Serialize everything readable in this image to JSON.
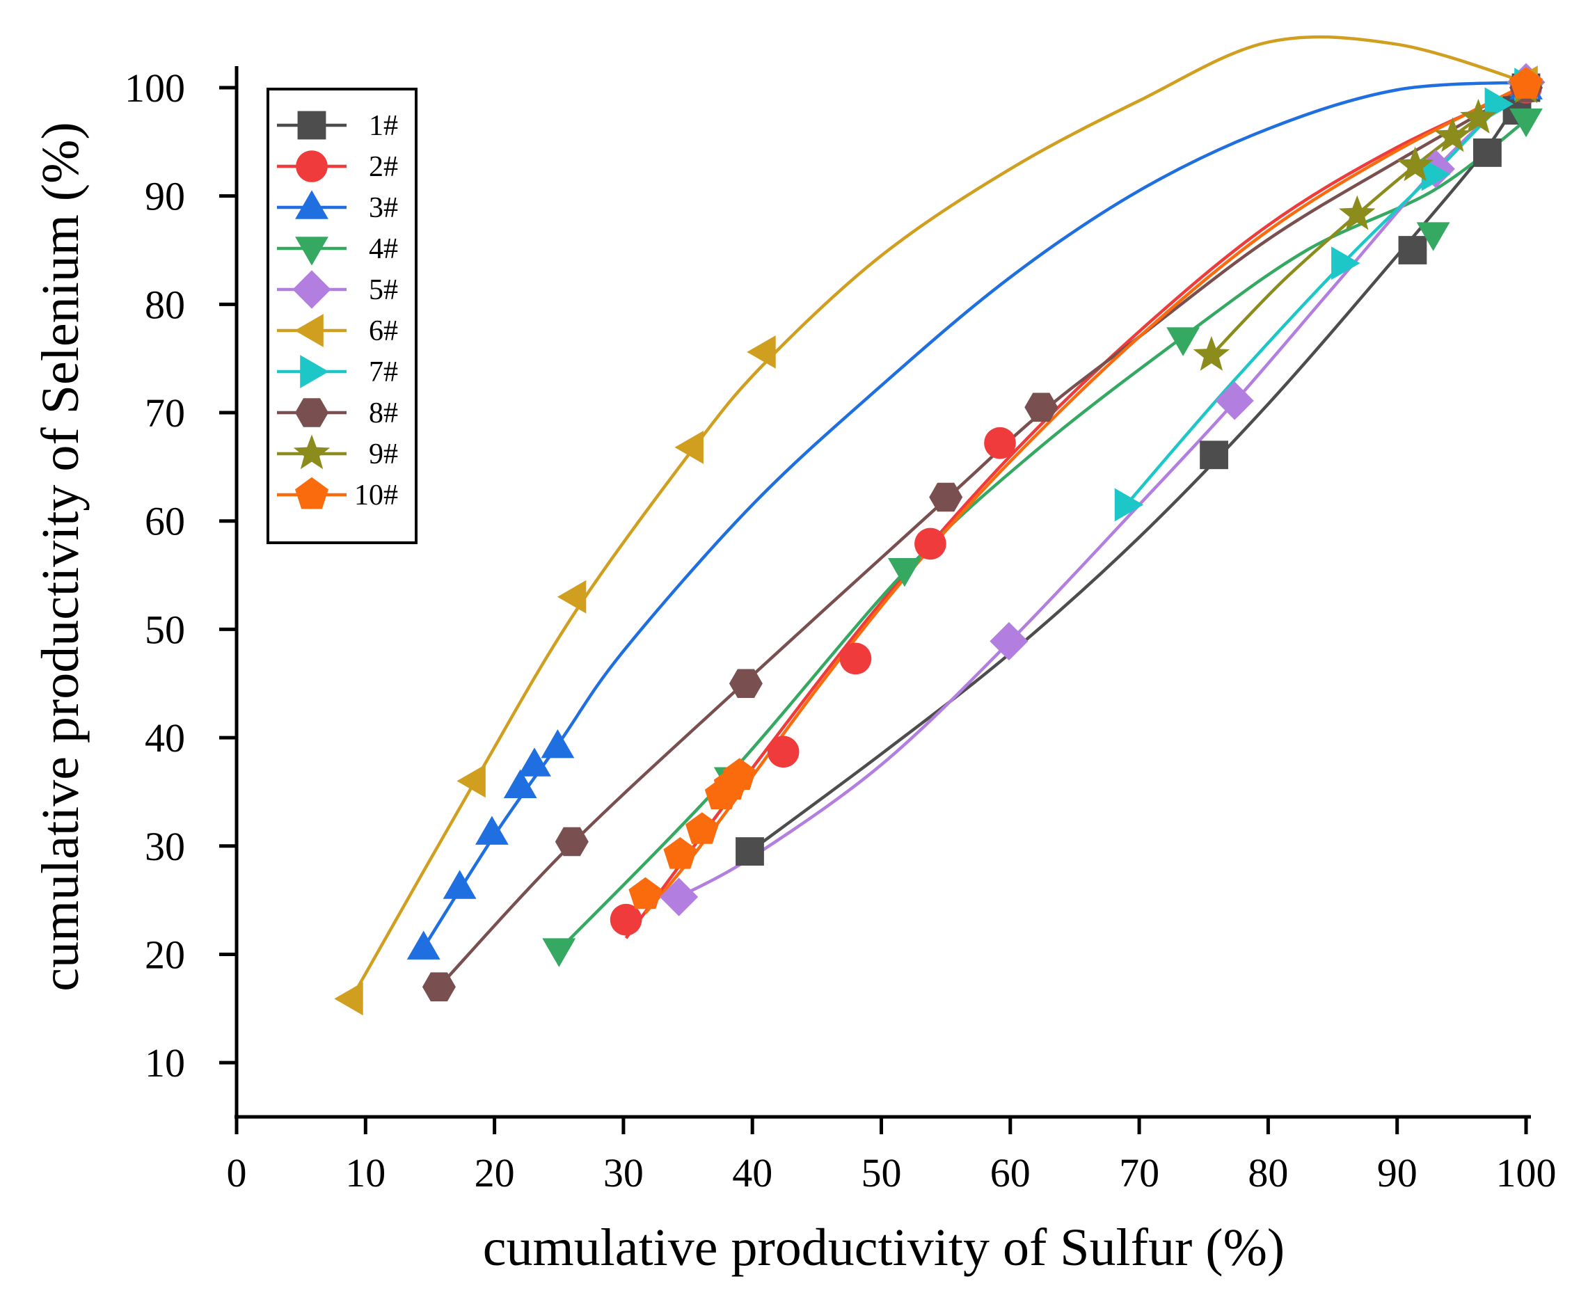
{
  "chart_data": {
    "type": "line",
    "xlabel": "cumulative productivity of Sulfur (%)",
    "ylabel": "cumulative productivity of Selenium (%)",
    "xlim": [
      0,
      100
    ],
    "ylim": [
      5,
      100
    ],
    "x_ticks": [
      "0",
      "10",
      "20",
      "30",
      "40",
      "50",
      "60",
      "70",
      "80",
      "90",
      "100"
    ],
    "y_ticks": [
      "10",
      "20",
      "30",
      "40",
      "50",
      "60",
      "70",
      "80",
      "90",
      "100"
    ],
    "legend_position": "top-left",
    "grid": false,
    "series": [
      {
        "name": "1#",
        "color": "#4d4d4d",
        "marker": "square",
        "points": [
          [
            39.8,
            29.5
          ],
          [
            75.8,
            66.1
          ],
          [
            91.2,
            85.0
          ],
          [
            97.0,
            94.0
          ],
          [
            99.3,
            97.9
          ],
          [
            100.0,
            100.0
          ]
        ],
        "curve": [
          [
            39.8,
            29.5
          ],
          [
            50,
            38.5
          ],
          [
            60,
            47.8
          ],
          [
            70,
            58.5
          ],
          [
            80,
            70.8
          ],
          [
            90,
            84.5
          ],
          [
            97,
            94.5
          ],
          [
            100,
            100.3
          ]
        ]
      },
      {
        "name": "2#",
        "color": "#ef3b3b",
        "marker": "circle",
        "points": [
          [
            30.2,
            23.2
          ],
          [
            42.4,
            38.7
          ],
          [
            48.0,
            47.3
          ],
          [
            53.8,
            57.9
          ],
          [
            59.2,
            67.2
          ],
          [
            100.0,
            100.0
          ]
        ],
        "curve": [
          [
            30.2,
            21.5
          ],
          [
            40,
            37.2
          ],
          [
            50,
            52.5
          ],
          [
            60,
            66.0
          ],
          [
            70,
            77.5
          ],
          [
            80,
            87.3
          ],
          [
            90,
            94.5
          ],
          [
            100,
            100.0
          ]
        ]
      },
      {
        "name": "3#",
        "color": "#1f6fe0",
        "marker": "triangle-up",
        "points": [
          [
            14.5,
            20.6
          ],
          [
            17.3,
            26.2
          ],
          [
            19.8,
            31.2
          ],
          [
            22.0,
            35.5
          ],
          [
            23.1,
            37.5
          ],
          [
            24.9,
            39.2
          ],
          [
            100.0,
            100.0
          ]
        ],
        "curve": [
          [
            14.5,
            20.6
          ],
          [
            20,
            31.0
          ],
          [
            25,
            39.5
          ],
          [
            30,
            48.0
          ],
          [
            40,
            61.5
          ],
          [
            50,
            72.5
          ],
          [
            60,
            82.5
          ],
          [
            70,
            90.5
          ],
          [
            80,
            96.2
          ],
          [
            90,
            99.8
          ],
          [
            100,
            100.5
          ]
        ]
      },
      {
        "name": "4#",
        "color": "#35a862",
        "marker": "triangle-down",
        "points": [
          [
            25.0,
            20.4
          ],
          [
            38.3,
            36.2
          ],
          [
            51.8,
            55.5
          ],
          [
            73.4,
            76.8
          ],
          [
            92.8,
            86.5
          ],
          [
            100.0,
            97.0
          ]
        ],
        "curve": [
          [
            25.0,
            20.4
          ],
          [
            38,
            36.3
          ],
          [
            51.8,
            55.3
          ],
          [
            62,
            66.5
          ],
          [
            73.4,
            77.0
          ],
          [
            83,
            85.0
          ],
          [
            92.8,
            90.5
          ],
          [
            100,
            97.0
          ]
        ]
      },
      {
        "name": "5#",
        "color": "#b27fe0",
        "marker": "diamond",
        "points": [
          [
            34.3,
            25.3
          ],
          [
            59.9,
            48.9
          ],
          [
            77.4,
            71.1
          ],
          [
            93.0,
            92.5
          ],
          [
            100.0,
            100.5
          ]
        ],
        "curve": [
          [
            34.3,
            25.3
          ],
          [
            40,
            29.0
          ],
          [
            50,
            37.5
          ],
          [
            59.9,
            48.8
          ],
          [
            70,
            61.5
          ],
          [
            77.4,
            71.0
          ],
          [
            85,
            81.5
          ],
          [
            93,
            92.5
          ],
          [
            100,
            100.5
          ]
        ]
      },
      {
        "name": "6#",
        "color": "#d19f1f",
        "marker": "triangle-left",
        "points": [
          [
            8.9,
            15.9
          ],
          [
            18.4,
            36.0
          ],
          [
            26.2,
            53.0
          ],
          [
            35.3,
            66.8
          ],
          [
            40.9,
            75.6
          ],
          [
            100.0,
            100.5
          ]
        ],
        "curve": [
          [
            8.9,
            15.9
          ],
          [
            18.4,
            35.8
          ],
          [
            26.2,
            51.5
          ],
          [
            35.3,
            66.5
          ],
          [
            40.9,
            74.5
          ],
          [
            50,
            84.5
          ],
          [
            60,
            92.5
          ],
          [
            70,
            98.8
          ],
          [
            80,
            104.2
          ],
          [
            90,
            104.0
          ],
          [
            100,
            100.5
          ]
        ]
      },
      {
        "name": "7#",
        "color": "#1ec7c7",
        "marker": "triangle-right",
        "points": [
          [
            69.0,
            61.5
          ],
          [
            85.8,
            83.8
          ],
          [
            92.8,
            92.0
          ],
          [
            97.7,
            98.5
          ],
          [
            100.0,
            100.3
          ]
        ],
        "curve": [
          [
            69.0,
            61.5
          ],
          [
            77,
            72.5
          ],
          [
            85.8,
            83.8
          ],
          [
            92.8,
            92.0
          ],
          [
            97.7,
            98.0
          ],
          [
            100,
            100.3
          ]
        ]
      },
      {
        "name": "8#",
        "color": "#7a4f4f",
        "marker": "hexagon",
        "points": [
          [
            15.7,
            17.0
          ],
          [
            26.0,
            30.4
          ],
          [
            39.5,
            45.0
          ],
          [
            55.0,
            62.2
          ],
          [
            62.4,
            70.5
          ],
          [
            100.0,
            100.0
          ]
        ],
        "curve": [
          [
            15.7,
            17.0
          ],
          [
            26.0,
            30.2
          ],
          [
            39.5,
            45.2
          ],
          [
            55.0,
            62.0
          ],
          [
            62.4,
            70.0
          ],
          [
            70,
            77.0
          ],
          [
            80,
            86.0
          ],
          [
            90,
            93.2
          ],
          [
            100,
            100.0
          ]
        ]
      },
      {
        "name": "9#",
        "color": "#8c8c1c",
        "marker": "star",
        "points": [
          [
            75.6,
            75.3
          ],
          [
            86.9,
            88.3
          ],
          [
            91.4,
            92.8
          ],
          [
            94.3,
            95.5
          ],
          [
            96.3,
            97.2
          ],
          [
            100.0,
            100.0
          ]
        ],
        "curve": [
          [
            75.6,
            75.3
          ],
          [
            81,
            82.0
          ],
          [
            86.9,
            88.3
          ],
          [
            91.4,
            92.8
          ],
          [
            96.3,
            97.2
          ],
          [
            100,
            100.0
          ]
        ]
      },
      {
        "name": "10#",
        "color": "#fa6b0e",
        "marker": "pentagon",
        "points": [
          [
            31.7,
            25.5
          ],
          [
            34.4,
            29.2
          ],
          [
            36.1,
            31.5
          ],
          [
            37.6,
            34.7
          ],
          [
            38.3,
            35.6
          ],
          [
            39.0,
            36.5
          ],
          [
            100.0,
            100.3
          ]
        ],
        "curve": [
          [
            31.7,
            23.8
          ],
          [
            35,
            28.5
          ],
          [
            39,
            34.8
          ],
          [
            45,
            44.5
          ],
          [
            52,
            55.0
          ],
          [
            60,
            65.5
          ],
          [
            70,
            77.0
          ],
          [
            80,
            86.8
          ],
          [
            90,
            94.2
          ],
          [
            100,
            100.3
          ]
        ]
      }
    ]
  }
}
